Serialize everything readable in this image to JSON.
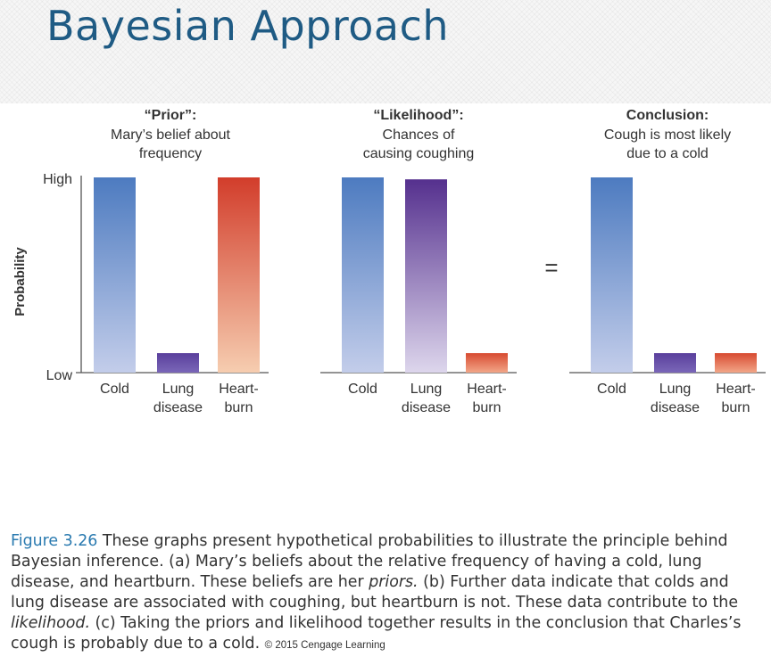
{
  "slide_title": "Bayesian Approach",
  "y_axis": {
    "label": "Probability",
    "high_label": "High",
    "low_label": "Low"
  },
  "equals_sign": "=",
  "chart_data": [
    {
      "type": "bar",
      "heading": "“Prior”:",
      "subtitle_lines": [
        "Mary’s belief about",
        "frequency"
      ],
      "categories": [
        [
          "Cold"
        ],
        [
          "Lung",
          "disease"
        ],
        [
          "Heart-",
          "burn"
        ]
      ],
      "values": [
        1.0,
        0.1,
        1.0
      ],
      "ylabel": "Probability",
      "ylim": [
        0,
        1
      ],
      "colors": [
        [
          "#4d7bc0",
          "#c3cdea"
        ],
        [
          "#5a3f9c",
          "#7a67b8"
        ],
        [
          "#d23d2b",
          "#f6cdb0"
        ]
      ]
    },
    {
      "type": "bar",
      "heading": "“Likelihood”:",
      "subtitle_lines": [
        "Chances of",
        "causing coughing"
      ],
      "categories": [
        [
          "Cold"
        ],
        [
          "Lung",
          "disease"
        ],
        [
          "Heart-",
          "burn"
        ]
      ],
      "values": [
        1.0,
        0.99,
        0.1
      ],
      "ylabel": "Probability",
      "ylim": [
        0,
        1
      ],
      "colors": [
        [
          "#4d7bc0",
          "#c3cdea"
        ],
        [
          "#55308e",
          "#ddd6ec"
        ],
        [
          "#d74a30",
          "#f2a688"
        ]
      ]
    },
    {
      "type": "bar",
      "heading": "Conclusion:",
      "subtitle_lines": [
        "Cough is most likely",
        "due to a cold"
      ],
      "categories": [
        [
          "Cold"
        ],
        [
          "Lung",
          "disease"
        ],
        [
          "Heart-",
          "burn"
        ]
      ],
      "values": [
        1.0,
        0.1,
        0.1
      ],
      "ylabel": "Probability",
      "ylim": [
        0,
        1
      ],
      "colors": [
        [
          "#4d7bc0",
          "#c3cdea"
        ],
        [
          "#5a3f9c",
          "#7a67b8"
        ],
        [
          "#d74a30",
          "#f2a688"
        ]
      ]
    }
  ],
  "caption": {
    "figure_label": "Figure 3.26",
    "text_part1": "These graphs present hypothetical probabilities to illustrate the principle behind Bayesian inference. (a) Mary’s beliefs about the relative frequency of having a cold, lung disease, and heartburn. These beliefs are her ",
    "priors": "priors.",
    "text_part2": " (b) Further data indicate that colds and lung disease are associated with coughing, but heartburn is not. These data contribute to the ",
    "likelihood": "likelihood.",
    "text_part3": " (c) Taking the priors and likelihood together results in the conclusion that Charles’s cough is probably due to a cold. ",
    "copyright": "© 2015 Cengage Learning"
  }
}
